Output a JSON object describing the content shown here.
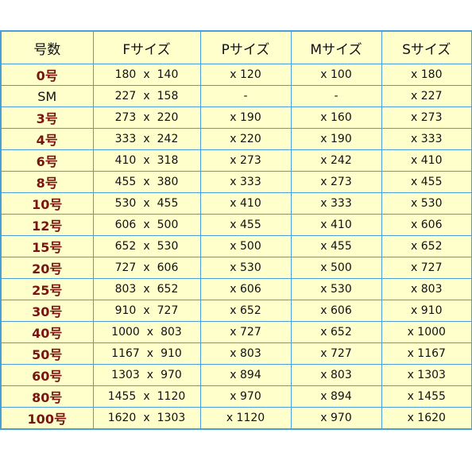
{
  "headers": [
    "号数",
    "Fサイズ",
    "Pサイズ",
    "Mサイズ",
    "Sサイズ"
  ],
  "rows": [
    {
      "label": "0号",
      "f_w": "180",
      "f_x": "x",
      "f_h": "140",
      "p": "x 120",
      "m": "x 100",
      "s": "x 180"
    },
    {
      "label": "SM",
      "f_w": "227",
      "f_x": "x",
      "f_h": "158",
      "p": "-",
      "m": "-",
      "s": "x 227"
    },
    {
      "label": "3号",
      "f_w": "273",
      "f_x": "x",
      "f_h": "220",
      "p": "x 190",
      "m": "x 160",
      "s": "x 273"
    },
    {
      "label": "4号",
      "f_w": "333",
      "f_x": "x",
      "f_h": "242",
      "p": "x 220",
      "m": "x 190",
      "s": "x 333"
    },
    {
      "label": "6号",
      "f_w": "410",
      "f_x": "x",
      "f_h": "318",
      "p": "x 273",
      "m": "x 242",
      "s": "x 410"
    },
    {
      "label": "8号",
      "f_w": "455",
      "f_x": "x",
      "f_h": "380",
      "p": "x 333",
      "m": "x 273",
      "s": "x 455"
    },
    {
      "label": "10号",
      "f_w": "530",
      "f_x": "x",
      "f_h": "455",
      "p": "x 410",
      "m": "x 333",
      "s": "x 530"
    },
    {
      "label": "12号",
      "f_w": "606",
      "f_x": "x",
      "f_h": "500",
      "p": "x 455",
      "m": "x 410",
      "s": "x 606"
    },
    {
      "label": "15号",
      "f_w": "652",
      "f_x": "x",
      "f_h": "530",
      "p": "x 500",
      "m": "x 455",
      "s": "x 652"
    },
    {
      "label": "20号",
      "f_w": "727",
      "f_x": "x",
      "f_h": "606",
      "p": "x 530",
      "m": "x 500",
      "s": "x 727"
    },
    {
      "label": "25号",
      "f_w": "803",
      "f_x": "x",
      "f_h": "652",
      "p": "x 606",
      "m": "x 530",
      "s": "x 803"
    },
    {
      "label": "30号",
      "f_w": "910",
      "f_x": "x",
      "f_h": "727",
      "p": "x 652",
      "m": "x 606",
      "s": "x 910"
    },
    {
      "label": "40号",
      "f_w": "1000",
      "f_x": "x",
      "f_h": "803",
      "p": "x 727",
      "m": "x 652",
      "s": "x 1000"
    },
    {
      "label": "50号",
      "f_w": "1167",
      "f_x": "x",
      "f_h": "910",
      "p": "x 803",
      "m": "x 727",
      "s": "x 1167"
    },
    {
      "label": "60号",
      "f_w": "1303",
      "f_x": "x",
      "f_h": "970",
      "p": "x 894",
      "m": "x 803",
      "s": "x 1303"
    },
    {
      "label": "80号",
      "f_w": "1455",
      "f_x": "x",
      "f_h": "1120",
      "p": "x 970",
      "m": "x 894",
      "s": "x 1455"
    },
    {
      "label": "100号",
      "f_w": "1620",
      "f_x": "x",
      "f_h": "1303",
      "p": "x 1120",
      "m": "x 970",
      "s": "x 1620"
    }
  ],
  "colors": {
    "border": "#4a9fd8",
    "background": "#ffffcc",
    "label_text": "#7a1410"
  }
}
